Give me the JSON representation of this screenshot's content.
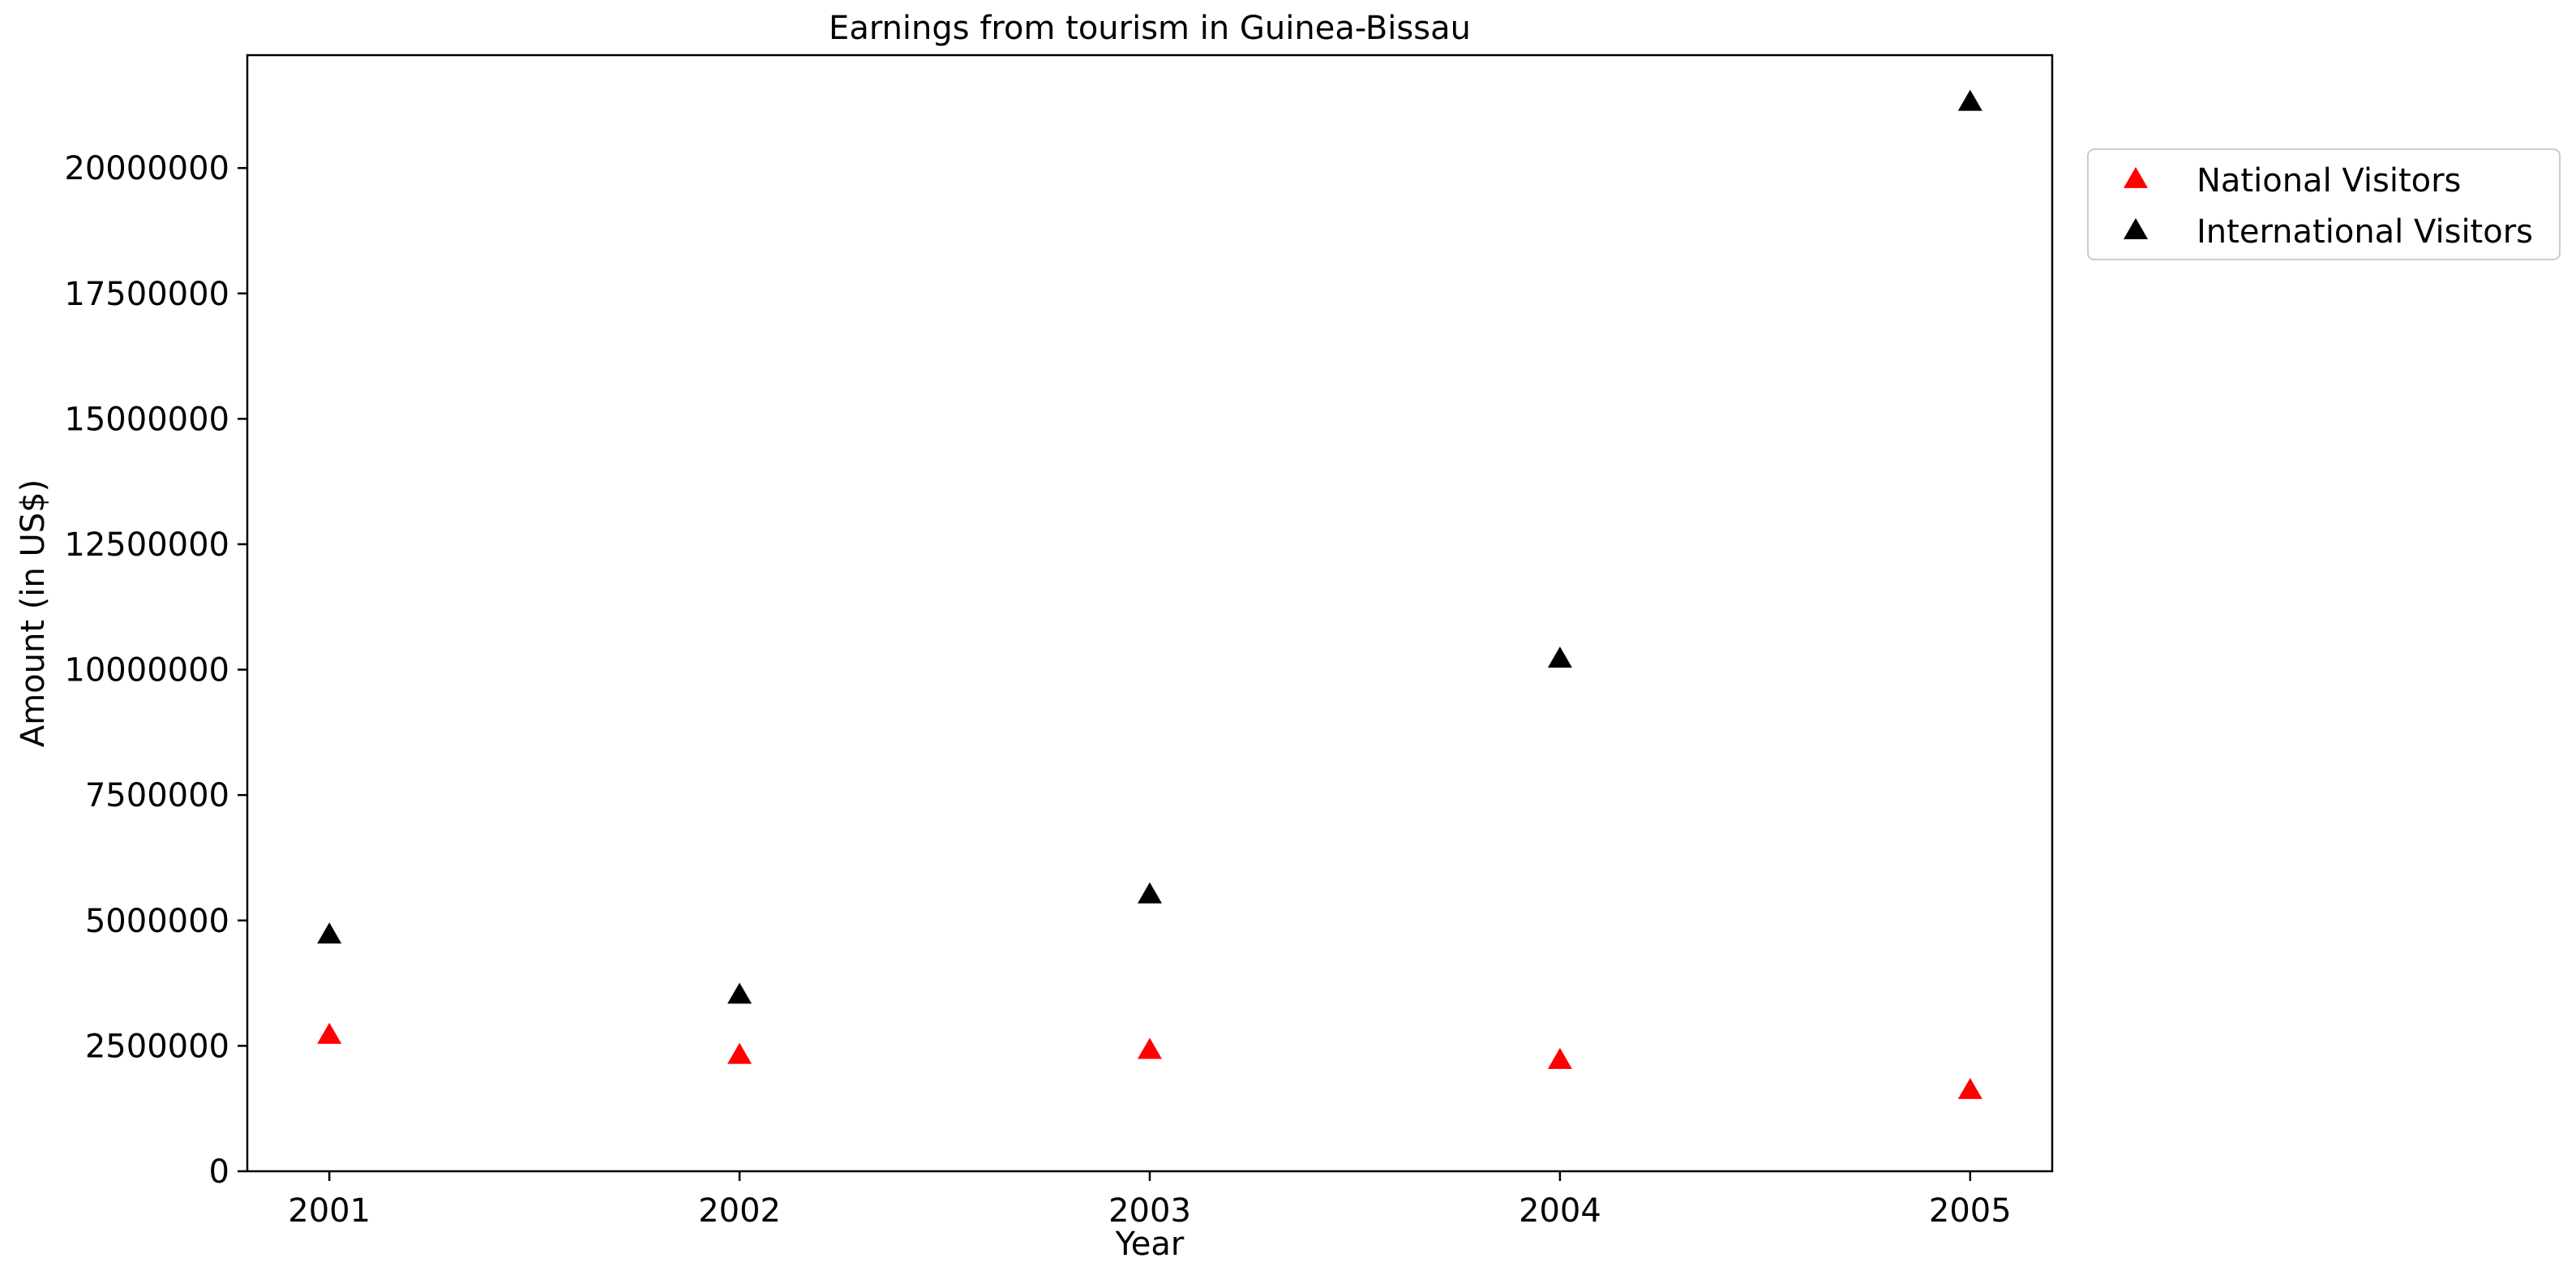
{
  "chart_data": {
    "type": "scatter",
    "title": "Earnings from tourism in Guinea-Bissau",
    "xlabel": "Year",
    "ylabel": "Amount (in US$)",
    "x": [
      2001,
      2002,
      2003,
      2004,
      2005
    ],
    "x_tick_labels": [
      "2001",
      "2002",
      "2003",
      "2004",
      "2005"
    ],
    "xlim": [
      2000.8,
      2005.2
    ],
    "ylim": [
      0,
      22250000
    ],
    "y_ticks": [
      0,
      2500000,
      5000000,
      7500000,
      10000000,
      12500000,
      15000000,
      17500000,
      20000000
    ],
    "y_tick_labels": [
      "0",
      "2500000",
      "5000000",
      "7500000",
      "10000000",
      "12500000",
      "15000000",
      "17500000",
      "20000000"
    ],
    "grid": false,
    "legend_position": "outside right, top",
    "marker": "triangle",
    "series": [
      {
        "name": "National Visitors",
        "color": "#ff0000",
        "values": [
          2700000,
          2300000,
          2400000,
          2200000,
          1600000
        ]
      },
      {
        "name": "International Visitors",
        "color": "#000000",
        "values": [
          4700000,
          3500000,
          5500000,
          10200000,
          21300000
        ]
      }
    ]
  }
}
